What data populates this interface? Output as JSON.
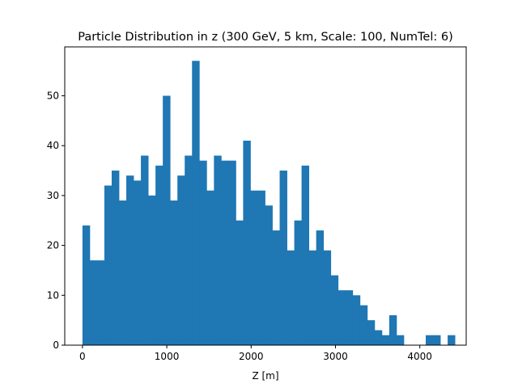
{
  "chart_data": {
    "type": "bar",
    "title": "Particle Distribution in z (300 GeV, 5 km, Scale: 100, NumTel: 6)",
    "xlabel": "Z [m]",
    "ylabel": "",
    "xlim": [
      -210,
      4550
    ],
    "ylim": [
      0,
      59.8
    ],
    "x_ticks": [
      0,
      1000,
      2000,
      3000,
      4000
    ],
    "y_ticks": [
      0,
      10,
      20,
      30,
      40,
      50
    ],
    "bar_color": "#1f77b4",
    "grid": false,
    "bin_start": 0,
    "bin_width": 86.6,
    "values": [
      24,
      17,
      17,
      32,
      35,
      29,
      34,
      33,
      38,
      30,
      36,
      50,
      29,
      34,
      38,
      57,
      37,
      31,
      38,
      37,
      37,
      25,
      41,
      31,
      31,
      28,
      23,
      35,
      19,
      25,
      36,
      19,
      23,
      19,
      14,
      11,
      11,
      10,
      8,
      5,
      3,
      2,
      6,
      2,
      0,
      0,
      0,
      2,
      2,
      0,
      2
    ]
  }
}
